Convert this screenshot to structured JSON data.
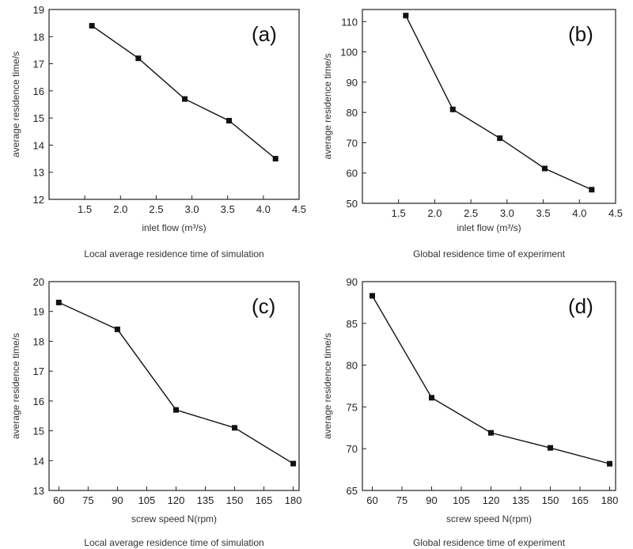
{
  "chart_data": [
    {
      "type": "line",
      "panel_letter": "(a)",
      "x": [
        1.6,
        2.25,
        2.9,
        3.52,
        4.17
      ],
      "series": [
        {
          "values": [
            18.4,
            17.2,
            15.7,
            14.9,
            13.5
          ]
        }
      ],
      "xlabel": "inlet flow (m³/s)",
      "ylabel": "average residence time/s",
      "xlim": [
        1.0,
        4.5
      ],
      "ylim": [
        12,
        19
      ],
      "xticks": [
        "1.5",
        "2.0",
        "2.5",
        "3.0",
        "3.5",
        "4.0",
        "4.5"
      ],
      "yticks": [
        "12",
        "13",
        "14",
        "15",
        "16",
        "17",
        "18",
        "19"
      ],
      "caption": "Local average residence time of simulation",
      "grid": false
    },
    {
      "type": "line",
      "panel_letter": "(b)",
      "x": [
        1.6,
        2.25,
        2.9,
        3.52,
        4.17
      ],
      "series": [
        {
          "values": [
            112,
            81,
            71.5,
            61.5,
            54.5
          ]
        }
      ],
      "xlabel": "inlet flow (m³/s)",
      "ylabel": "average residence time/s",
      "xlim": [
        1.0,
        4.5
      ],
      "ylim": [
        50,
        114
      ],
      "xticks": [
        "1.5",
        "2.0",
        "2.5",
        "3.0",
        "3.5",
        "4.0",
        "4.5"
      ],
      "yticks": [
        "50",
        "60",
        "70",
        "80",
        "90",
        "100",
        "110"
      ],
      "caption": "Global residence time of experiment",
      "grid": false
    },
    {
      "type": "line",
      "panel_letter": "(c)",
      "x": [
        60,
        90,
        120,
        150,
        180
      ],
      "series": [
        {
          "values": [
            19.3,
            18.4,
            15.7,
            15.1,
            13.9
          ]
        }
      ],
      "xlabel": "screw speed N(rpm)",
      "ylabel": "average residence time/s",
      "xlim": [
        55,
        183
      ],
      "ylim": [
        13,
        20
      ],
      "xticks": [
        "60",
        "75",
        "90",
        "105",
        "120",
        "135",
        "150",
        "165",
        "180"
      ],
      "yticks": [
        "13",
        "14",
        "15",
        "16",
        "17",
        "18",
        "19",
        "20"
      ],
      "caption": "Local average residence time of simulation",
      "grid": false
    },
    {
      "type": "line",
      "panel_letter": "(d)",
      "x": [
        60,
        90,
        120,
        150,
        180
      ],
      "series": [
        {
          "values": [
            88.3,
            76.1,
            71.9,
            70.1,
            68.2
          ]
        }
      ],
      "xlabel": "screw speed N(rpm)",
      "ylabel": "average residence time/s",
      "xlim": [
        55,
        183
      ],
      "ylim": [
        65,
        90
      ],
      "xticks": [
        "60",
        "75",
        "90",
        "105",
        "120",
        "135",
        "150",
        "165",
        "180"
      ],
      "yticks": [
        "65",
        "70",
        "75",
        "80",
        "85",
        "90"
      ],
      "caption": "Global residence time of experiment",
      "grid": false
    }
  ]
}
